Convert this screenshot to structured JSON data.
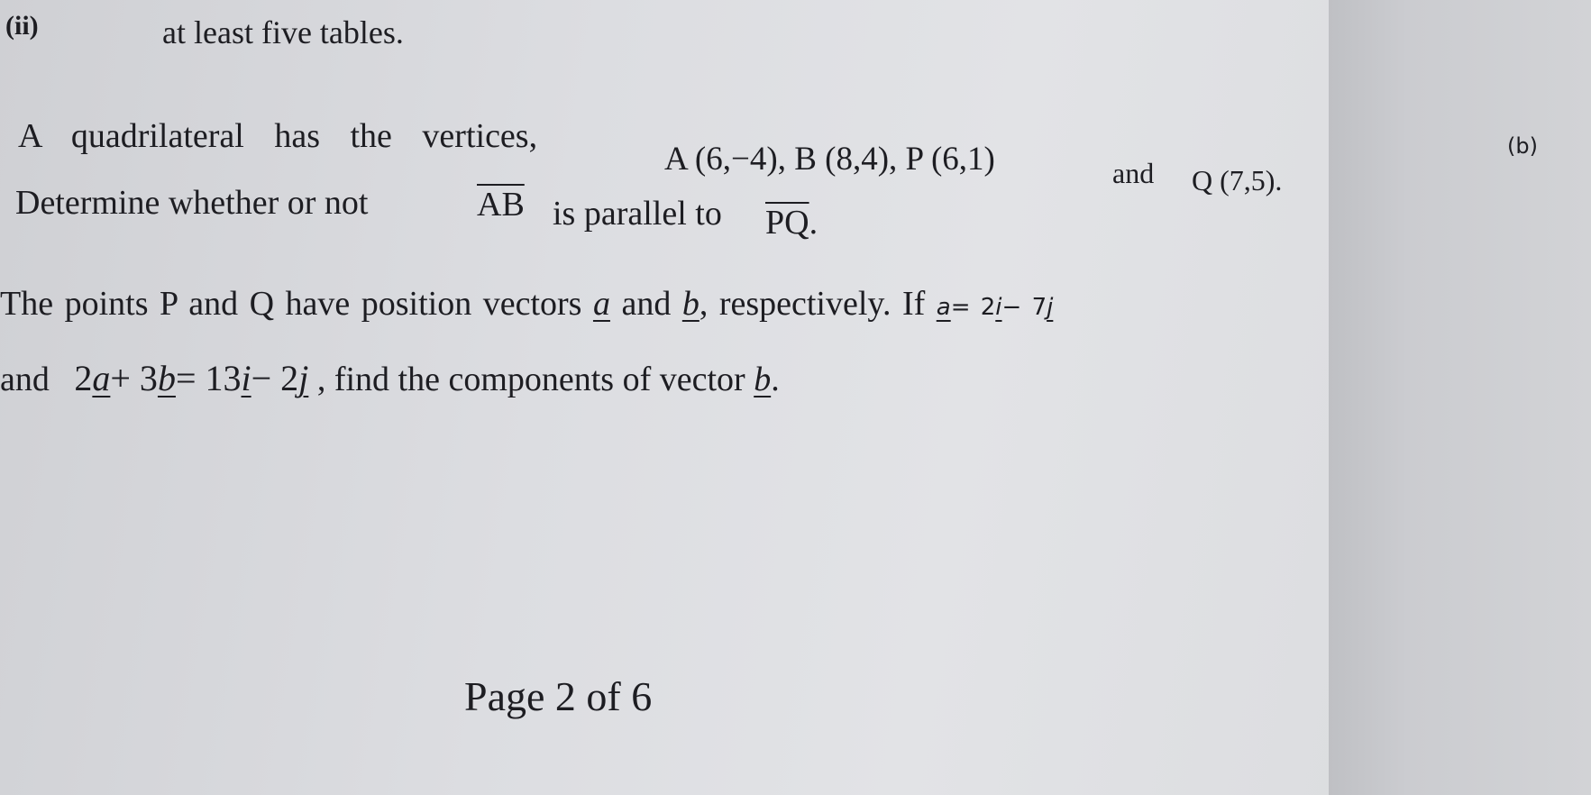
{
  "item_ii": {
    "label": "(ii)",
    "text": "at least five tables."
  },
  "part_b_label": "(b)",
  "line1": [
    "A quadrilateral has the vertices,",
    "A (6,−4), B (8,4), P (6,1)",
    "and",
    "Q (7,5)."
  ],
  "line2": [
    "Determine whether or not",
    "AB",
    "is parallel to",
    "PQ",
    "."
  ],
  "line3": [
    "The points P and Q have position vectors",
    "a",
    "and",
    "b",
    ", respectively. If",
    "a",
    "= 2",
    "i",
    "− 7",
    "j"
  ],
  "line4": [
    "and",
    "2",
    "a",
    "+ 3",
    "b",
    "= 13",
    "i",
    "− 2",
    "j",
    ", find the components of vector",
    "b",
    "."
  ],
  "footer": "Page 2 of 6"
}
